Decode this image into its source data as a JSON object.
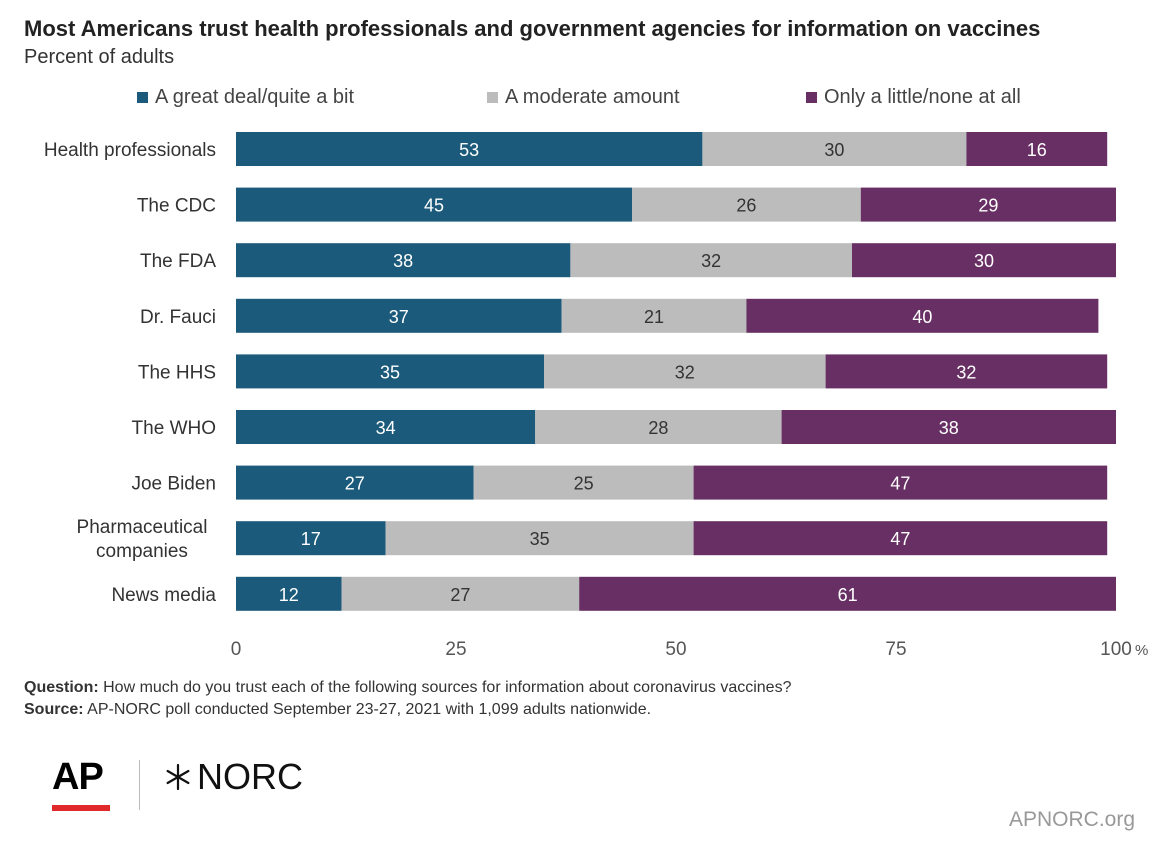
{
  "chart_data": {
    "type": "bar",
    "orientation": "horizontal",
    "stacked": true,
    "title": "Most Americans trust health professionals and government agencies for information on vaccines",
    "subtitle": "Percent of adults",
    "categories": [
      "Health professionals",
      "The CDC",
      "The FDA",
      "Dr. Fauci",
      "The HHS",
      "The WHO",
      "Joe Biden",
      "Pharmaceutical companies",
      "News media"
    ],
    "series": [
      {
        "name": "A great deal/quite a bit",
        "color": "#1b5a7a",
        "values": [
          53,
          45,
          38,
          37,
          35,
          34,
          27,
          17,
          12
        ]
      },
      {
        "name": "A moderate amount",
        "color": "#bcbcbc",
        "values": [
          30,
          26,
          32,
          21,
          32,
          28,
          25,
          35,
          27
        ]
      },
      {
        "name": "Only a little/none at all",
        "color": "#672f63",
        "values": [
          16,
          29,
          30,
          40,
          32,
          38,
          47,
          47,
          61
        ]
      }
    ],
    "xlim": [
      0,
      100
    ],
    "xticks": [
      "0",
      "25",
      "50",
      "75",
      "100"
    ],
    "x_unit": "%",
    "legend": "top",
    "grid": false
  },
  "notes": {
    "question_label": "Question:",
    "question_text": "How much do you trust each of the following sources for information about coronavirus vaccines?",
    "source_label": "Source:",
    "source_text": "AP-NORC poll conducted September 23-27, 2021 with 1,099 adults nationwide."
  },
  "logos": {
    "ap": "AP",
    "norc": "NORC"
  },
  "site": "APNORC.org"
}
